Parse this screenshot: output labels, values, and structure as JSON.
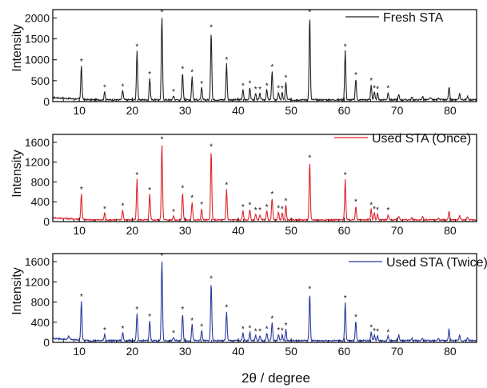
{
  "chart_data": [
    {
      "type": "line",
      "legend": {
        "label": "Fresh STA",
        "color": "#222222",
        "position": "top-right"
      },
      "ylabel": "Intensity",
      "xlabel": "",
      "xlim": [
        5,
        85
      ],
      "ylim": [
        0,
        2200
      ],
      "xticks": [
        10,
        20,
        30,
        40,
        50,
        60,
        70,
        80
      ],
      "xtick_labels": [
        "10",
        "20",
        "30",
        "40",
        "50",
        "60",
        "70",
        "80"
      ],
      "yticks": [
        0,
        500,
        1000,
        1500,
        2000
      ],
      "ytick_labels": [
        "0",
        "500",
        "1000",
        "1500",
        "2000"
      ],
      "peaks": [
        {
          "x": 10.4,
          "y": 820
        },
        {
          "x": 14.8,
          "y": 200
        },
        {
          "x": 18.2,
          "y": 220
        },
        {
          "x": 20.9,
          "y": 1180
        },
        {
          "x": 23.3,
          "y": 520
        },
        {
          "x": 25.6,
          "y": 2000
        },
        {
          "x": 27.8,
          "y": 100
        },
        {
          "x": 29.5,
          "y": 640
        },
        {
          "x": 31.3,
          "y": 560
        },
        {
          "x": 33.1,
          "y": 290
        },
        {
          "x": 34.9,
          "y": 1640
        },
        {
          "x": 37.8,
          "y": 860
        },
        {
          "x": 40.9,
          "y": 240
        },
        {
          "x": 42.2,
          "y": 300
        },
        {
          "x": 43.3,
          "y": 150
        },
        {
          "x": 44.1,
          "y": 150
        },
        {
          "x": 45.4,
          "y": 240
        },
        {
          "x": 46.4,
          "y": 690
        },
        {
          "x": 47.6,
          "y": 180
        },
        {
          "x": 48.3,
          "y": 170
        },
        {
          "x": 49.0,
          "y": 430
        },
        {
          "x": 53.5,
          "y": 2000
        },
        {
          "x": 60.2,
          "y": 1180
        },
        {
          "x": 62.2,
          "y": 500
        },
        {
          "x": 65.1,
          "y": 360
        },
        {
          "x": 65.7,
          "y": 180
        },
        {
          "x": 66.3,
          "y": 160
        },
        {
          "x": 68.3,
          "y": 180
        },
        {
          "x": 70.3,
          "y": 120
        },
        {
          "x": 72.8,
          "y": 60
        },
        {
          "x": 74.8,
          "y": 80
        },
        {
          "x": 76.3,
          "y": 60
        },
        {
          "x": 77.8,
          "y": 50
        },
        {
          "x": 79.8,
          "y": 300
        },
        {
          "x": 81.8,
          "y": 150
        },
        {
          "x": 83.3,
          "y": 90
        }
      ],
      "marked_peak_x": [
        10.4,
        14.8,
        18.2,
        20.9,
        23.3,
        25.6,
        27.8,
        29.5,
        31.3,
        33.1,
        34.9,
        37.8,
        40.9,
        42.2,
        43.3,
        44.1,
        45.4,
        46.4,
        47.6,
        48.3,
        49.0,
        53.5,
        60.2,
        62.2,
        65.1,
        65.7,
        66.3,
        68.3
      ]
    },
    {
      "type": "line",
      "legend": {
        "label": "Used STA (Once)",
        "color": "#e0242c",
        "position": "top-right"
      },
      "ylabel": "Intensity",
      "xlabel": "",
      "xlim": [
        5,
        85
      ],
      "ylim": [
        0,
        1760
      ],
      "xticks": [
        10,
        20,
        30,
        40,
        50,
        60,
        70,
        80
      ],
      "xtick_labels": [
        "10",
        "20",
        "30",
        "40",
        "50",
        "60",
        "70",
        "80"
      ],
      "yticks": [
        0,
        400,
        800,
        1200,
        1600
      ],
      "ytick_labels": [
        "0",
        "400",
        "800",
        "1200",
        "1600"
      ],
      "peaks": [
        {
          "x": 10.4,
          "y": 530
        },
        {
          "x": 14.8,
          "y": 140
        },
        {
          "x": 18.2,
          "y": 200
        },
        {
          "x": 20.9,
          "y": 820
        },
        {
          "x": 23.3,
          "y": 520
        },
        {
          "x": 25.6,
          "y": 1540
        },
        {
          "x": 27.8,
          "y": 80
        },
        {
          "x": 29.5,
          "y": 560
        },
        {
          "x": 31.3,
          "y": 360
        },
        {
          "x": 33.1,
          "y": 230
        },
        {
          "x": 34.9,
          "y": 1400
        },
        {
          "x": 37.8,
          "y": 620
        },
        {
          "x": 40.9,
          "y": 180
        },
        {
          "x": 42.2,
          "y": 220
        },
        {
          "x": 43.3,
          "y": 110
        },
        {
          "x": 44.1,
          "y": 110
        },
        {
          "x": 45.4,
          "y": 180
        },
        {
          "x": 46.4,
          "y": 440
        },
        {
          "x": 47.6,
          "y": 150
        },
        {
          "x": 48.3,
          "y": 140
        },
        {
          "x": 49.0,
          "y": 300
        },
        {
          "x": 53.5,
          "y": 1170
        },
        {
          "x": 60.2,
          "y": 820
        },
        {
          "x": 62.2,
          "y": 280
        },
        {
          "x": 65.1,
          "y": 220
        },
        {
          "x": 65.7,
          "y": 140
        },
        {
          "x": 66.3,
          "y": 120
        },
        {
          "x": 68.3,
          "y": 110
        },
        {
          "x": 70.3,
          "y": 80
        },
        {
          "x": 72.8,
          "y": 40
        },
        {
          "x": 74.8,
          "y": 60
        },
        {
          "x": 77.8,
          "y": 40
        },
        {
          "x": 79.8,
          "y": 180
        },
        {
          "x": 81.8,
          "y": 90
        },
        {
          "x": 83.3,
          "y": 60
        }
      ],
      "marked_peak_x": [
        10.4,
        14.8,
        18.2,
        20.9,
        23.3,
        25.6,
        27.8,
        29.5,
        31.3,
        33.1,
        34.9,
        37.8,
        40.9,
        42.2,
        43.3,
        44.1,
        45.4,
        46.4,
        47.6,
        48.3,
        49.0,
        53.5,
        60.2,
        62.2,
        65.1,
        65.7,
        66.3,
        68.3
      ]
    },
    {
      "type": "line",
      "legend": {
        "label": "Used STA (Twice)",
        "color": "#2b3b9e",
        "position": "top-right"
      },
      "ylabel": "Intensity",
      "xlabel": "2θ / degree",
      "xlim": [
        5,
        85
      ],
      "ylim": [
        0,
        1760
      ],
      "xticks": [
        10,
        20,
        30,
        40,
        50,
        60,
        70,
        80
      ],
      "xtick_labels": [
        "10",
        "20",
        "30",
        "40",
        "50",
        "60",
        "70",
        "80"
      ],
      "yticks": [
        0,
        400,
        800,
        1200,
        1600
      ],
      "ytick_labels": [
        "0",
        "400",
        "800",
        "1200",
        "1600"
      ],
      "peaks": [
        {
          "x": 8.0,
          "y": 80
        },
        {
          "x": 10.4,
          "y": 790
        },
        {
          "x": 14.8,
          "y": 130
        },
        {
          "x": 18.2,
          "y": 160
        },
        {
          "x": 20.9,
          "y": 540
        },
        {
          "x": 23.3,
          "y": 400
        },
        {
          "x": 25.6,
          "y": 1600
        },
        {
          "x": 27.8,
          "y": 70
        },
        {
          "x": 29.5,
          "y": 540
        },
        {
          "x": 31.3,
          "y": 320
        },
        {
          "x": 33.1,
          "y": 200
        },
        {
          "x": 34.9,
          "y": 1150
        },
        {
          "x": 37.8,
          "y": 580
        },
        {
          "x": 40.9,
          "y": 150
        },
        {
          "x": 42.2,
          "y": 170
        },
        {
          "x": 43.3,
          "y": 100
        },
        {
          "x": 44.1,
          "y": 100
        },
        {
          "x": 45.4,
          "y": 150
        },
        {
          "x": 46.4,
          "y": 360
        },
        {
          "x": 47.6,
          "y": 130
        },
        {
          "x": 48.3,
          "y": 120
        },
        {
          "x": 49.0,
          "y": 220
        },
        {
          "x": 53.5,
          "y": 940
        },
        {
          "x": 60.2,
          "y": 760
        },
        {
          "x": 62.2,
          "y": 390
        },
        {
          "x": 65.1,
          "y": 180
        },
        {
          "x": 65.7,
          "y": 110
        },
        {
          "x": 66.3,
          "y": 100
        },
        {
          "x": 68.3,
          "y": 90
        },
        {
          "x": 70.3,
          "y": 110
        },
        {
          "x": 72.8,
          "y": 40
        },
        {
          "x": 74.8,
          "y": 50
        },
        {
          "x": 77.8,
          "y": 40
        },
        {
          "x": 79.8,
          "y": 230
        },
        {
          "x": 81.8,
          "y": 110
        },
        {
          "x": 83.3,
          "y": 60
        }
      ],
      "marked_peak_x": [
        10.4,
        14.8,
        18.2,
        20.9,
        23.3,
        25.6,
        27.8,
        29.5,
        31.3,
        33.1,
        34.9,
        37.8,
        40.9,
        42.2,
        43.3,
        44.1,
        45.4,
        46.4,
        47.6,
        48.3,
        49.0,
        53.5,
        60.2,
        62.2,
        65.1,
        65.7,
        66.3,
        68.3
      ]
    }
  ]
}
